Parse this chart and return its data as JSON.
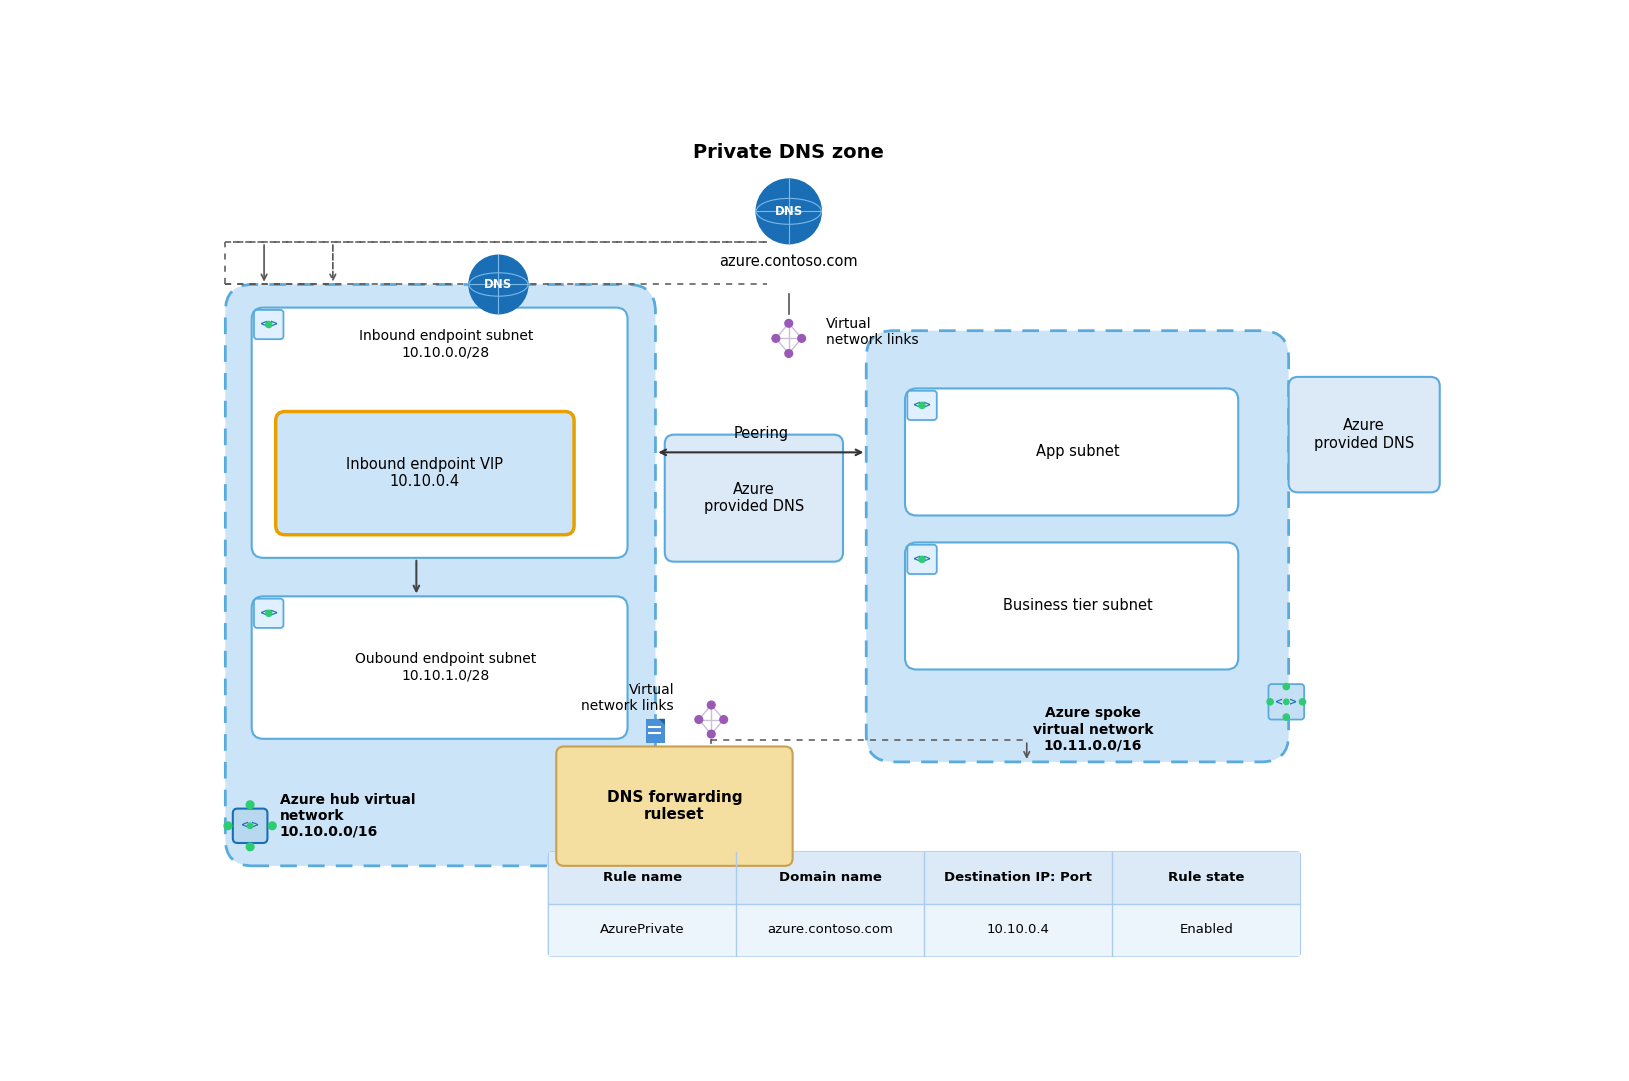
{
  "title": "Private DNS zone",
  "dns_label": "azure.contoso.com",
  "hub_network_label": "Azure hub virtual\nnetwork\n10.10.0.0/16",
  "spoke_network_label": "Azure spoke\nvirtual network\n10.11.0.0/16",
  "inbound_subnet_label": "Inbound endpoint subnet\n10.10.0.0/28",
  "inbound_vip_label": "Inbound endpoint VIP\n10.10.0.4",
  "outbound_subnet_label": "Oubound endpoint subnet\n10.10.1.0/28",
  "app_subnet_label": "App subnet",
  "business_subnet_label": "Business tier subnet",
  "azure_provided_dns_hub": "Azure\nprovided DNS",
  "azure_provided_dns_spoke": "Azure\nprovided DNS",
  "virtual_network_links_top": "Virtual\nnetwork links",
  "virtual_network_links_bottom": "Virtual\nnetwork links",
  "peering_label": "Peering",
  "dns_forwarding_label": "DNS forwarding\nruleset",
  "table_headers": [
    "Rule name",
    "Domain name",
    "Destination IP: Port",
    "Rule state"
  ],
  "table_row": [
    "AzurePrivate",
    "azure.contoso.com",
    "10.10.0.4",
    "Enabled"
  ],
  "bg_color": "#ffffff",
  "hub_bg": "#cce0f5",
  "spoke_bg": "#cce0f5",
  "box_white": "#ffffff",
  "vip_border": "#e8a000",
  "dns_blue": "#1a6eb5",
  "edge_blue": "#5aabdd",
  "azure_provided_bg": "#dce9f7",
  "forwarding_bg": "#f5dfa0",
  "table_header_bg": "#dce9f7",
  "table_row_bg": "#edf5fc",
  "purple": "#9b59b6",
  "green": "#2ecc71",
  "icon_blue": "#1a6eb5"
}
